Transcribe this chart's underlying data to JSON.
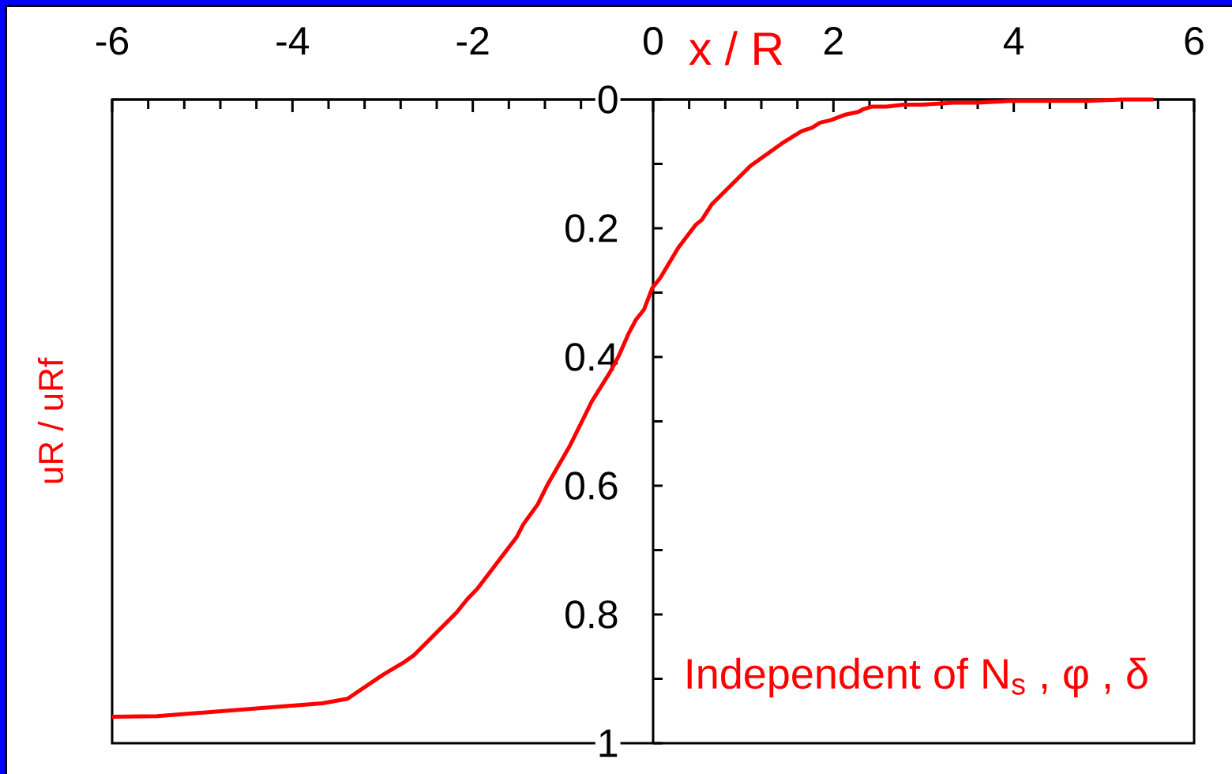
{
  "chart_data": {
    "type": "line",
    "xlabel": "x / R",
    "ylabel": "uR / uRf",
    "annotations": [
      "Independent of N$_{s}$ , φ , δ"
    ],
    "x": [
      -6.0,
      -5.5,
      -3.67,
      -3.39,
      -3.0,
      -2.76,
      -2.65,
      -2.18,
      -2.06,
      -1.95,
      -1.51,
      -1.44,
      -1.28,
      -1.17,
      -1.12,
      -0.92,
      -0.76,
      -0.68,
      -0.48,
      -0.38,
      -0.27,
      -0.19,
      -0.1,
      -0.01,
      0.08,
      0.28,
      0.47,
      0.54,
      0.65,
      1.08,
      1.43,
      1.65,
      1.76,
      1.85,
      1.97,
      2.12,
      2.28,
      2.33,
      2.43,
      2.59,
      2.78,
      2.98,
      3.33,
      3.59,
      3.98,
      4.81,
      5.2,
      5.55
    ],
    "series": [
      {
        "color": "#ff0000",
        "values": [
          0.959,
          0.958,
          0.938,
          0.931,
          0.894,
          0.874,
          0.863,
          0.797,
          0.776,
          0.76,
          0.679,
          0.66,
          0.629,
          0.598,
          0.586,
          0.537,
          0.492,
          0.469,
          0.424,
          0.398,
          0.363,
          0.342,
          0.326,
          0.293,
          0.277,
          0.23,
          0.195,
          0.187,
          0.163,
          0.103,
          0.068,
          0.049,
          0.044,
          0.036,
          0.032,
          0.024,
          0.019,
          0.015,
          0.011,
          0.011,
          0.008,
          0.008,
          0.005,
          0.005,
          0.002,
          0.002,
          0.0,
          0.0
        ]
      }
    ],
    "xlim": [
      -6,
      6
    ],
    "xticks": [
      -6,
      {
        "value": -5.6,
        "label": null
      },
      {
        "value": -5.2,
        "label": null
      },
      {
        "value": -4.8,
        "label": null
      },
      {
        "value": -4.4,
        "label": null
      },
      -4,
      {
        "value": -3.6,
        "label": null
      },
      {
        "value": -3.2,
        "label": null
      },
      {
        "value": -2.8,
        "label": null
      },
      {
        "value": -2.4,
        "label": null
      },
      -2,
      {
        "value": -1.6,
        "label": null
      },
      {
        "value": -1.2,
        "label": null
      },
      {
        "value": -0.8,
        "label": null
      },
      {
        "value": -0.4,
        "label": null
      },
      0,
      {
        "value": 0.4,
        "label": null
      },
      {
        "value": 0.8,
        "label": null
      },
      {
        "value": 1.2,
        "label": null
      },
      {
        "value": 1.6,
        "label": null
      },
      2,
      {
        "value": 2.4,
        "label": null
      },
      {
        "value": 2.8,
        "label": null
      },
      {
        "value": 3.2,
        "label": null
      },
      {
        "value": 3.6,
        "label": null
      },
      4,
      {
        "value": 4.4,
        "label": null
      },
      {
        "value": 4.8,
        "label": null
      },
      {
        "value": 5.2,
        "label": null
      },
      {
        "value": 5.6,
        "label": null
      },
      6
    ],
    "ylim": [
      1,
      0
    ],
    "yticks": [
      0,
      {
        "value": 0.1,
        "label": null
      },
      0.2,
      {
        "value": 0.3,
        "label": null
      },
      0.4,
      {
        "value": 0.5,
        "label": null
      },
      0.6,
      {
        "value": 0.7,
        "label": null
      },
      0.8,
      {
        "value": 0.9,
        "label": null
      },
      1
    ],
    "marker": "none",
    "line_style": "solid"
  }
}
